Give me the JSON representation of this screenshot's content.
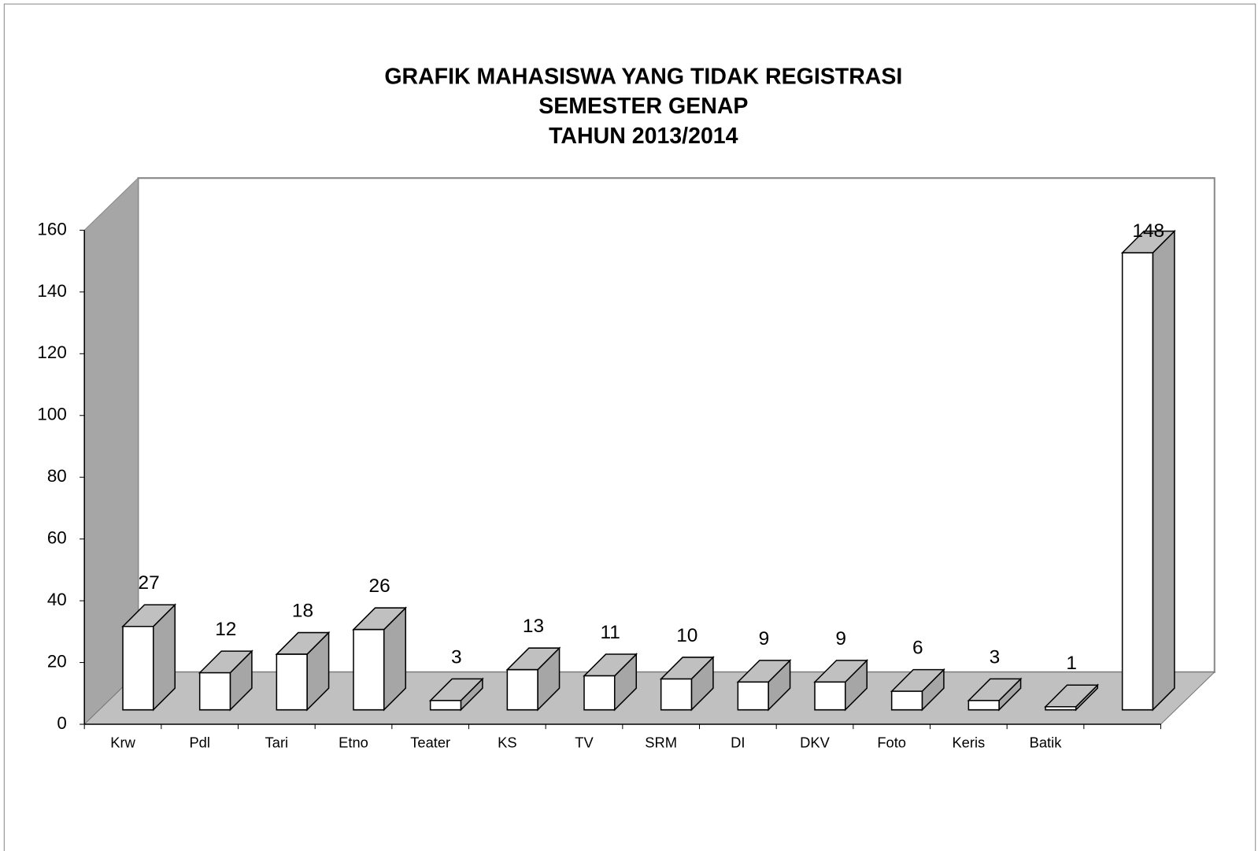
{
  "chart_data": {
    "type": "bar3d",
    "title": [
      "GRAFIK MAHASISWA YANG TIDAK REGISTRASI",
      "SEMESTER GENAP",
      "TAHUN 2013/2014"
    ],
    "categories": [
      "Krw",
      "Pdl",
      "Tari",
      "Etno",
      "Teater",
      "KS",
      "TV",
      "SRM",
      "DI",
      "DKV",
      "Foto",
      "Keris",
      "Batik",
      null
    ],
    "values": [
      27,
      12,
      18,
      26,
      3,
      13,
      11,
      10,
      9,
      9,
      6,
      3,
      1,
      148
    ],
    "color": "#ffffff",
    "ylim": [
      0,
      160
    ],
    "yticks": [
      0,
      20,
      40,
      60,
      80,
      100,
      120,
      140,
      160
    ]
  }
}
